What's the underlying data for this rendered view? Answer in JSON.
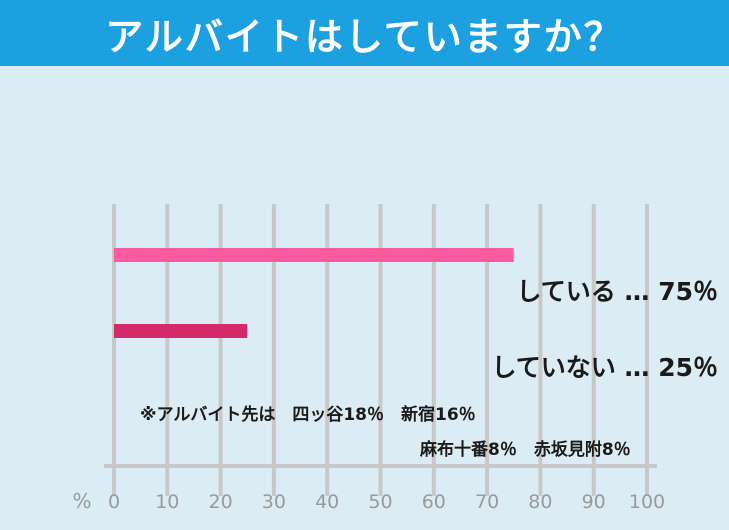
{
  "header": {
    "title": "アルバイトはしていますか？"
  },
  "colors": {
    "header_bg": "#1da0e0",
    "plot_bg": "#dcecf5",
    "grid": "#c8c8c8"
  },
  "chart_data": {
    "type": "bar",
    "orientation": "horizontal",
    "xlim": [
      0,
      100
    ],
    "ticks": [
      "0",
      "10",
      "20",
      "30",
      "40",
      "50",
      "60",
      "70",
      "80",
      "90",
      "100"
    ],
    "unit_label": "%",
    "grid": true,
    "categories": [
      "している",
      "していない"
    ],
    "values": [
      75,
      25
    ],
    "bar_colors": [
      "#ff5aa0",
      "#d42a6a"
    ],
    "data_labels": [
      "している … 75％",
      "していない … 25％"
    ],
    "annotations": [
      "※アルバイト先は　四ッ谷18％　新宿16％",
      "麻布十番8％　赤坂見附8％"
    ]
  }
}
